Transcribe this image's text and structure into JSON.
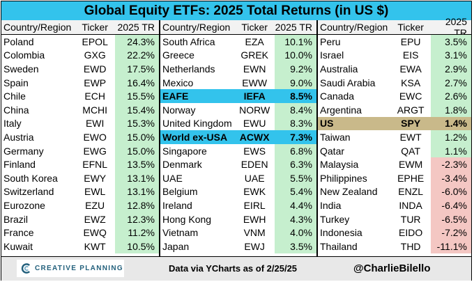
{
  "colors": {
    "title_bg": "#33c3ec",
    "highlight_blue": "#33c3ec",
    "highlight_tan": "#c9b98a",
    "positive": "#c6efce",
    "negative": "#f4c7c3",
    "brand": "#23607c"
  },
  "chart_data": {
    "type": "table",
    "title": "Global Equity ETFs: 2025 Total Returns (in US $)",
    "columns": [
      "Country/Region",
      "Ticker",
      "2025 TR"
    ],
    "panels": [
      {
        "header": {
          "country": "Country/Region",
          "ticker": "Ticker",
          "value": "2025 TR"
        },
        "rows": [
          {
            "country": "Poland",
            "ticker": "EPOL",
            "value": 24.3,
            "label": "24.3%",
            "highlight": ""
          },
          {
            "country": "Colombia",
            "ticker": "GXG",
            "value": 22.2,
            "label": "22.2%",
            "highlight": ""
          },
          {
            "country": "Sweden",
            "ticker": "EWD",
            "value": 17.5,
            "label": "17.5%",
            "highlight": ""
          },
          {
            "country": "Spain",
            "ticker": "EWP",
            "value": 16.4,
            "label": "16.4%",
            "highlight": ""
          },
          {
            "country": "Chile",
            "ticker": "ECH",
            "value": 15.5,
            "label": "15.5%",
            "highlight": ""
          },
          {
            "country": "China",
            "ticker": "MCHI",
            "value": 15.4,
            "label": "15.4%",
            "highlight": ""
          },
          {
            "country": "Italy",
            "ticker": "EWI",
            "value": 15.3,
            "label": "15.3%",
            "highlight": ""
          },
          {
            "country": "Austria",
            "ticker": "EWO",
            "value": 15.0,
            "label": "15.0%",
            "highlight": ""
          },
          {
            "country": "Germany",
            "ticker": "EWG",
            "value": 15.0,
            "label": "15.0%",
            "highlight": ""
          },
          {
            "country": "Finland",
            "ticker": "EFNL",
            "value": 13.5,
            "label": "13.5%",
            "highlight": ""
          },
          {
            "country": "South Korea",
            "ticker": "EWY",
            "value": 13.1,
            "label": "13.1%",
            "highlight": ""
          },
          {
            "country": "Switzerland",
            "ticker": "EWL",
            "value": 13.1,
            "label": "13.1%",
            "highlight": ""
          },
          {
            "country": "Eurozone",
            "ticker": "EZU",
            "value": 12.8,
            "label": "12.8%",
            "highlight": ""
          },
          {
            "country": "Brazil",
            "ticker": "EWZ",
            "value": 12.3,
            "label": "12.3%",
            "highlight": ""
          },
          {
            "country": "France",
            "ticker": "EWQ",
            "value": 11.2,
            "label": "11.2%",
            "highlight": ""
          },
          {
            "country": "Kuwait",
            "ticker": "KWT",
            "value": 10.5,
            "label": "10.5%",
            "highlight": ""
          }
        ]
      },
      {
        "header": {
          "country": "Country/Region",
          "ticker": "Ticker",
          "value": "2025 TR"
        },
        "rows": [
          {
            "country": "South Africa",
            "ticker": "EZA",
            "value": 10.1,
            "label": "10.1%",
            "highlight": ""
          },
          {
            "country": "Greece",
            "ticker": "GREK",
            "value": 10.0,
            "label": "10.0%",
            "highlight": ""
          },
          {
            "country": "Netherlands",
            "ticker": "EWN",
            "value": 9.2,
            "label": "9.2%",
            "highlight": ""
          },
          {
            "country": "Mexico",
            "ticker": "EWW",
            "value": 9.0,
            "label": "9.0%",
            "highlight": ""
          },
          {
            "country": "EAFE",
            "ticker": "IEFA",
            "value": 8.5,
            "label": "8.5%",
            "highlight": "blue"
          },
          {
            "country": "Norway",
            "ticker": "NORW",
            "value": 8.4,
            "label": "8.4%",
            "highlight": ""
          },
          {
            "country": "United Kingdom",
            "ticker": "EWU",
            "value": 8.3,
            "label": "8.3%",
            "highlight": ""
          },
          {
            "country": "World ex-USA",
            "ticker": "ACWX",
            "value": 7.3,
            "label": "7.3%",
            "highlight": "blue"
          },
          {
            "country": "Singapore",
            "ticker": "EWS",
            "value": 6.8,
            "label": "6.8%",
            "highlight": ""
          },
          {
            "country": "Denmark",
            "ticker": "EDEN",
            "value": 6.3,
            "label": "6.3%",
            "highlight": ""
          },
          {
            "country": "UAE",
            "ticker": "UAE",
            "value": 5.5,
            "label": "5.5%",
            "highlight": ""
          },
          {
            "country": "Belgium",
            "ticker": "EWK",
            "value": 5.4,
            "label": "5.4%",
            "highlight": ""
          },
          {
            "country": "Ireland",
            "ticker": "EIRL",
            "value": 4.4,
            "label": "4.4%",
            "highlight": ""
          },
          {
            "country": "Hong Kong",
            "ticker": "EWH",
            "value": 4.3,
            "label": "4.3%",
            "highlight": ""
          },
          {
            "country": "Vietnam",
            "ticker": "VNM",
            "value": 4.0,
            "label": "4.0%",
            "highlight": ""
          },
          {
            "country": "Japan",
            "ticker": "EWJ",
            "value": 3.5,
            "label": "3.5%",
            "highlight": ""
          }
        ]
      },
      {
        "header": {
          "country": "Country/Region",
          "ticker": "Ticker",
          "value": "2025 TR"
        },
        "rows": [
          {
            "country": "Peru",
            "ticker": "EPU",
            "value": 3.5,
            "label": "3.5%",
            "highlight": ""
          },
          {
            "country": "Israel",
            "ticker": "EIS",
            "value": 3.1,
            "label": "3.1%",
            "highlight": ""
          },
          {
            "country": "Australia",
            "ticker": "EWA",
            "value": 2.9,
            "label": "2.9%",
            "highlight": ""
          },
          {
            "country": "Saudi Arabia",
            "ticker": "KSA",
            "value": 2.7,
            "label": "2.7%",
            "highlight": ""
          },
          {
            "country": "Canada",
            "ticker": "EWC",
            "value": 2.6,
            "label": "2.6%",
            "highlight": ""
          },
          {
            "country": "Argentina",
            "ticker": "ARGT",
            "value": 1.8,
            "label": "1.8%",
            "highlight": ""
          },
          {
            "country": "US",
            "ticker": "SPY",
            "value": 1.4,
            "label": "1.4%",
            "highlight": "tan"
          },
          {
            "country": "Taiwan",
            "ticker": "EWT",
            "value": 1.2,
            "label": "1.2%",
            "highlight": ""
          },
          {
            "country": "Qatar",
            "ticker": "QAT",
            "value": 1.1,
            "label": "1.1%",
            "highlight": ""
          },
          {
            "country": "Malaysia",
            "ticker": "EWM",
            "value": -2.3,
            "label": "-2.3%",
            "highlight": ""
          },
          {
            "country": "Philippines",
            "ticker": "EPHE",
            "value": -3.4,
            "label": "-3.4%",
            "highlight": ""
          },
          {
            "country": "New Zealand",
            "ticker": "ENZL",
            "value": -6.0,
            "label": "-6.0%",
            "highlight": ""
          },
          {
            "country": "India",
            "ticker": "INDA",
            "value": -6.4,
            "label": "-6.4%",
            "highlight": ""
          },
          {
            "country": "Turkey",
            "ticker": "TUR",
            "value": -6.5,
            "label": "-6.5%",
            "highlight": ""
          },
          {
            "country": "Indonesia",
            "ticker": "EIDO",
            "value": -7.2,
            "label": "-7.2%",
            "highlight": ""
          },
          {
            "country": "Thailand",
            "ticker": "THD",
            "value": -11.1,
            "label": "-11.1%",
            "highlight": ""
          }
        ]
      }
    ]
  },
  "footer": {
    "logo_text": "CREATIVE PLANNING",
    "logo_icon": "creative-planning-logo-icon",
    "source": "Data via YCharts as of 2/25/25",
    "handle": "@CharlieBilello"
  }
}
